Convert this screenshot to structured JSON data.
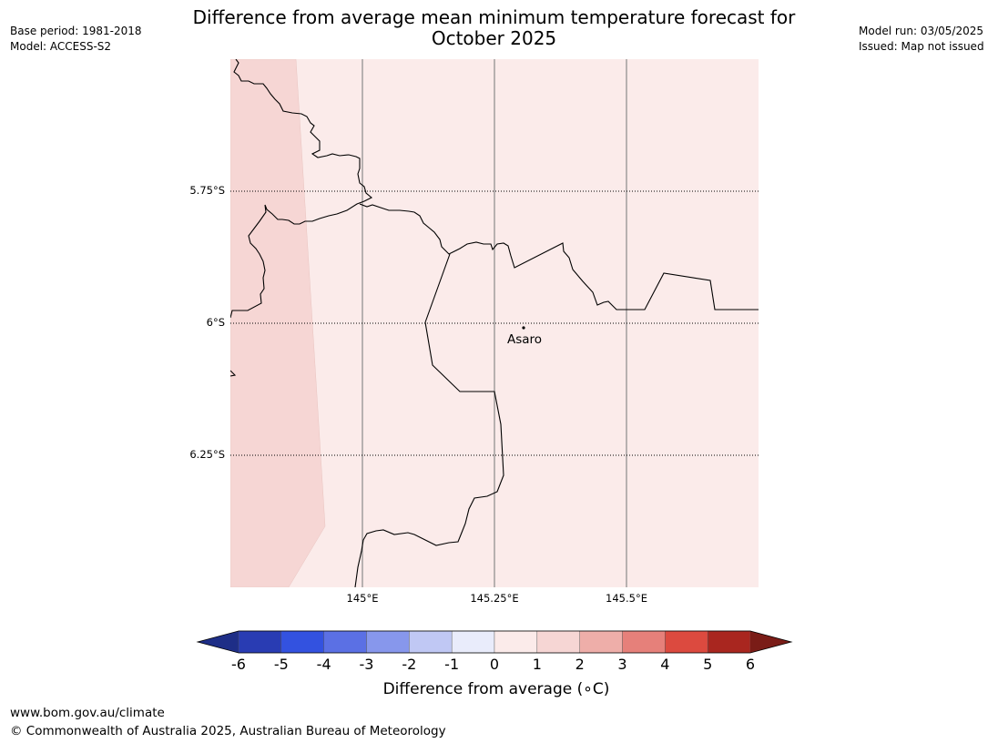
{
  "header": {
    "title_line1": "Difference from average mean minimum temperature forecast for",
    "title_line2": "October 2025",
    "base_period": "Base period: 1981-2018",
    "model": "Model: ACCESS-S2",
    "model_run": "Model run: 03/05/2025",
    "issued": "Issued: Map not issued"
  },
  "map": {
    "place_label": "Asaro",
    "lat_labels": [
      "5.75°S",
      "6°S",
      "6.25°S"
    ],
    "lon_labels": [
      "145°E",
      "145.25°E",
      "145.5°E"
    ],
    "fill_colors": {
      "band_0_1": "#fbebea",
      "band_1_2": "#f6d6d4"
    }
  },
  "colorbar": {
    "title": "Difference from average (∘C)",
    "ticks": [
      "-6",
      "-5",
      "-4",
      "-3",
      "-2",
      "-1",
      "0",
      "1",
      "2",
      "3",
      "4",
      "5",
      "6"
    ],
    "colors": [
      "#1e2e87",
      "#293cb3",
      "#3352e0",
      "#5b70e4",
      "#8797ec",
      "#c0c8f4",
      "#e9ecfb",
      "#fbebea",
      "#f6d6d4",
      "#eeaea9",
      "#e6807a",
      "#dc4a3f",
      "#a9261f",
      "#7a1c17"
    ]
  },
  "footer": {
    "url": "www.bom.gov.au/climate",
    "copyright": "© Commonwealth of Australia 2025, Australian Bureau of Meteorology"
  }
}
